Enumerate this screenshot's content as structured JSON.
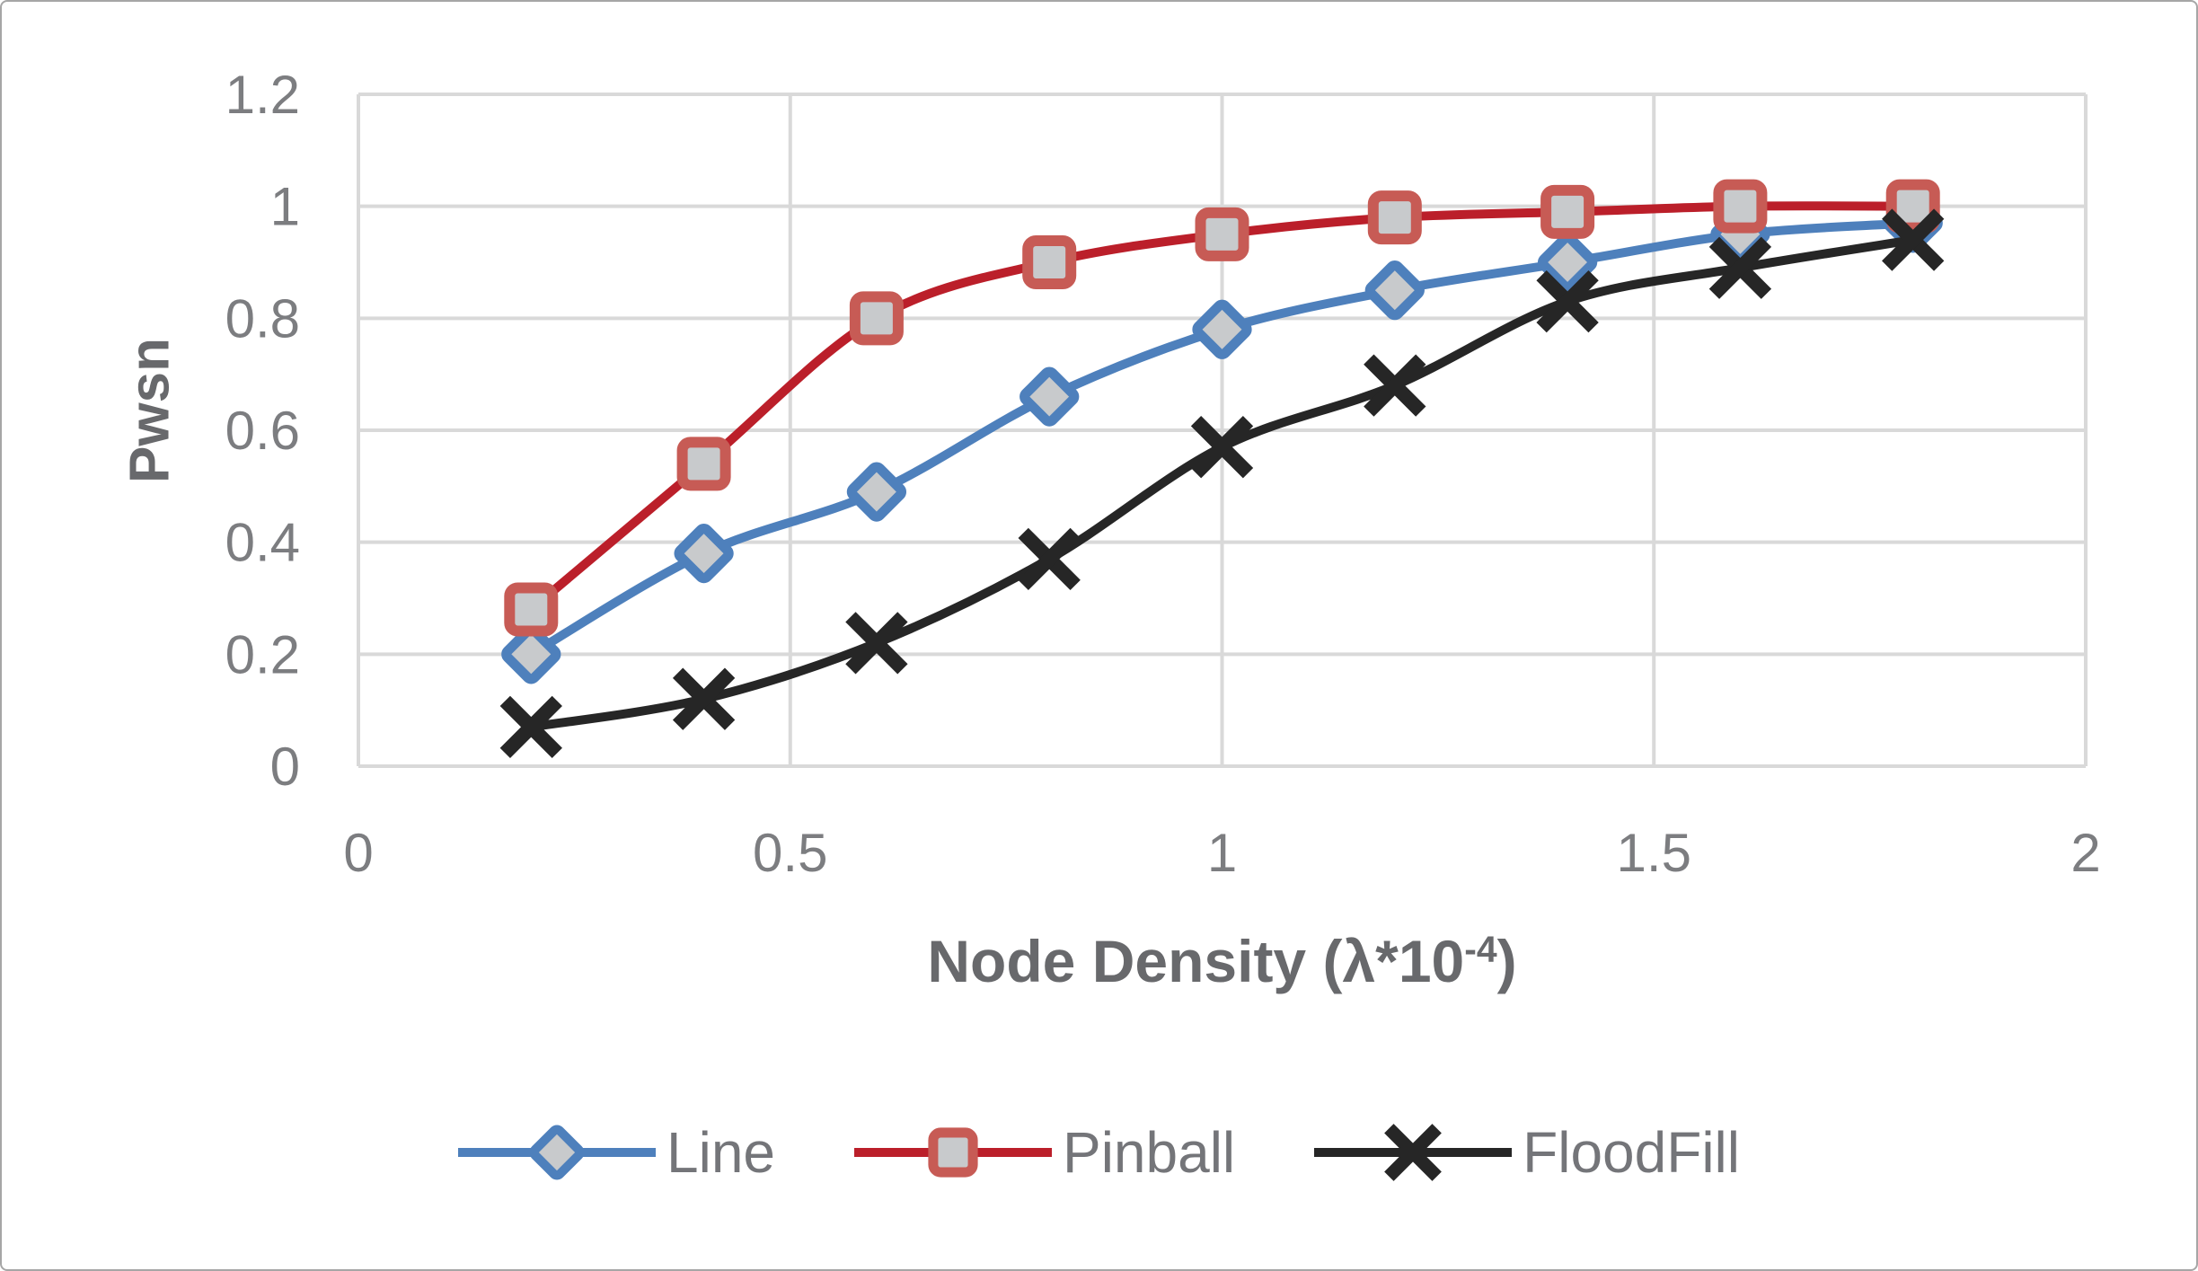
{
  "chart_data": {
    "type": "line",
    "title": "",
    "xlabel": "Node Density (λ*10⁻⁴)",
    "xlabel_parts": {
      "base": "Node Density (λ*10",
      "superscript": "-4",
      "suffix": ")"
    },
    "ylabel": "Pwsn",
    "xlim": [
      0,
      2
    ],
    "ylim": [
      0,
      1.2
    ],
    "xticks": [
      0,
      0.5,
      1,
      1.5,
      2
    ],
    "xtick_labels": [
      "0",
      "0.5",
      "1",
      "1.5",
      "2"
    ],
    "yticks": [
      0,
      0.2,
      0.4,
      0.6,
      0.8,
      1,
      1.2
    ],
    "ytick_labels": [
      "0",
      "0.2",
      "0.4",
      "0.6",
      "0.8",
      "1",
      "1.2"
    ],
    "grid": true,
    "legend_position": "bottom",
    "x": [
      0.2,
      0.4,
      0.6,
      0.8,
      1.0,
      1.2,
      1.4,
      1.6,
      1.8
    ],
    "series": [
      {
        "name": "Line",
        "marker": "diamond",
        "color": "#4e80bc",
        "marker_border": "#4e80bc",
        "values": [
          0.2,
          0.38,
          0.49,
          0.66,
          0.78,
          0.85,
          0.9,
          0.95,
          0.97
        ]
      },
      {
        "name": "Pinball",
        "marker": "square",
        "color": "#bb1f2a",
        "marker_border": "#c75b55",
        "values": [
          0.28,
          0.54,
          0.8,
          0.9,
          0.95,
          0.98,
          0.99,
          1.0,
          1.0
        ]
      },
      {
        "name": "FloodFill",
        "marker": "x",
        "color": "#262626",
        "marker_border": "#262626",
        "values": [
          0.07,
          0.12,
          0.22,
          0.37,
          0.57,
          0.68,
          0.83,
          0.89,
          0.94
        ]
      }
    ]
  },
  "style": {
    "grid_color": "#d9d9d9",
    "tick_color": "#7c7d80",
    "title_color": "#68696c",
    "legend_text_color": "#747579",
    "marker_fill": "#c8cacc",
    "background": "#ffffff",
    "border_color": "#a6a6a6"
  }
}
